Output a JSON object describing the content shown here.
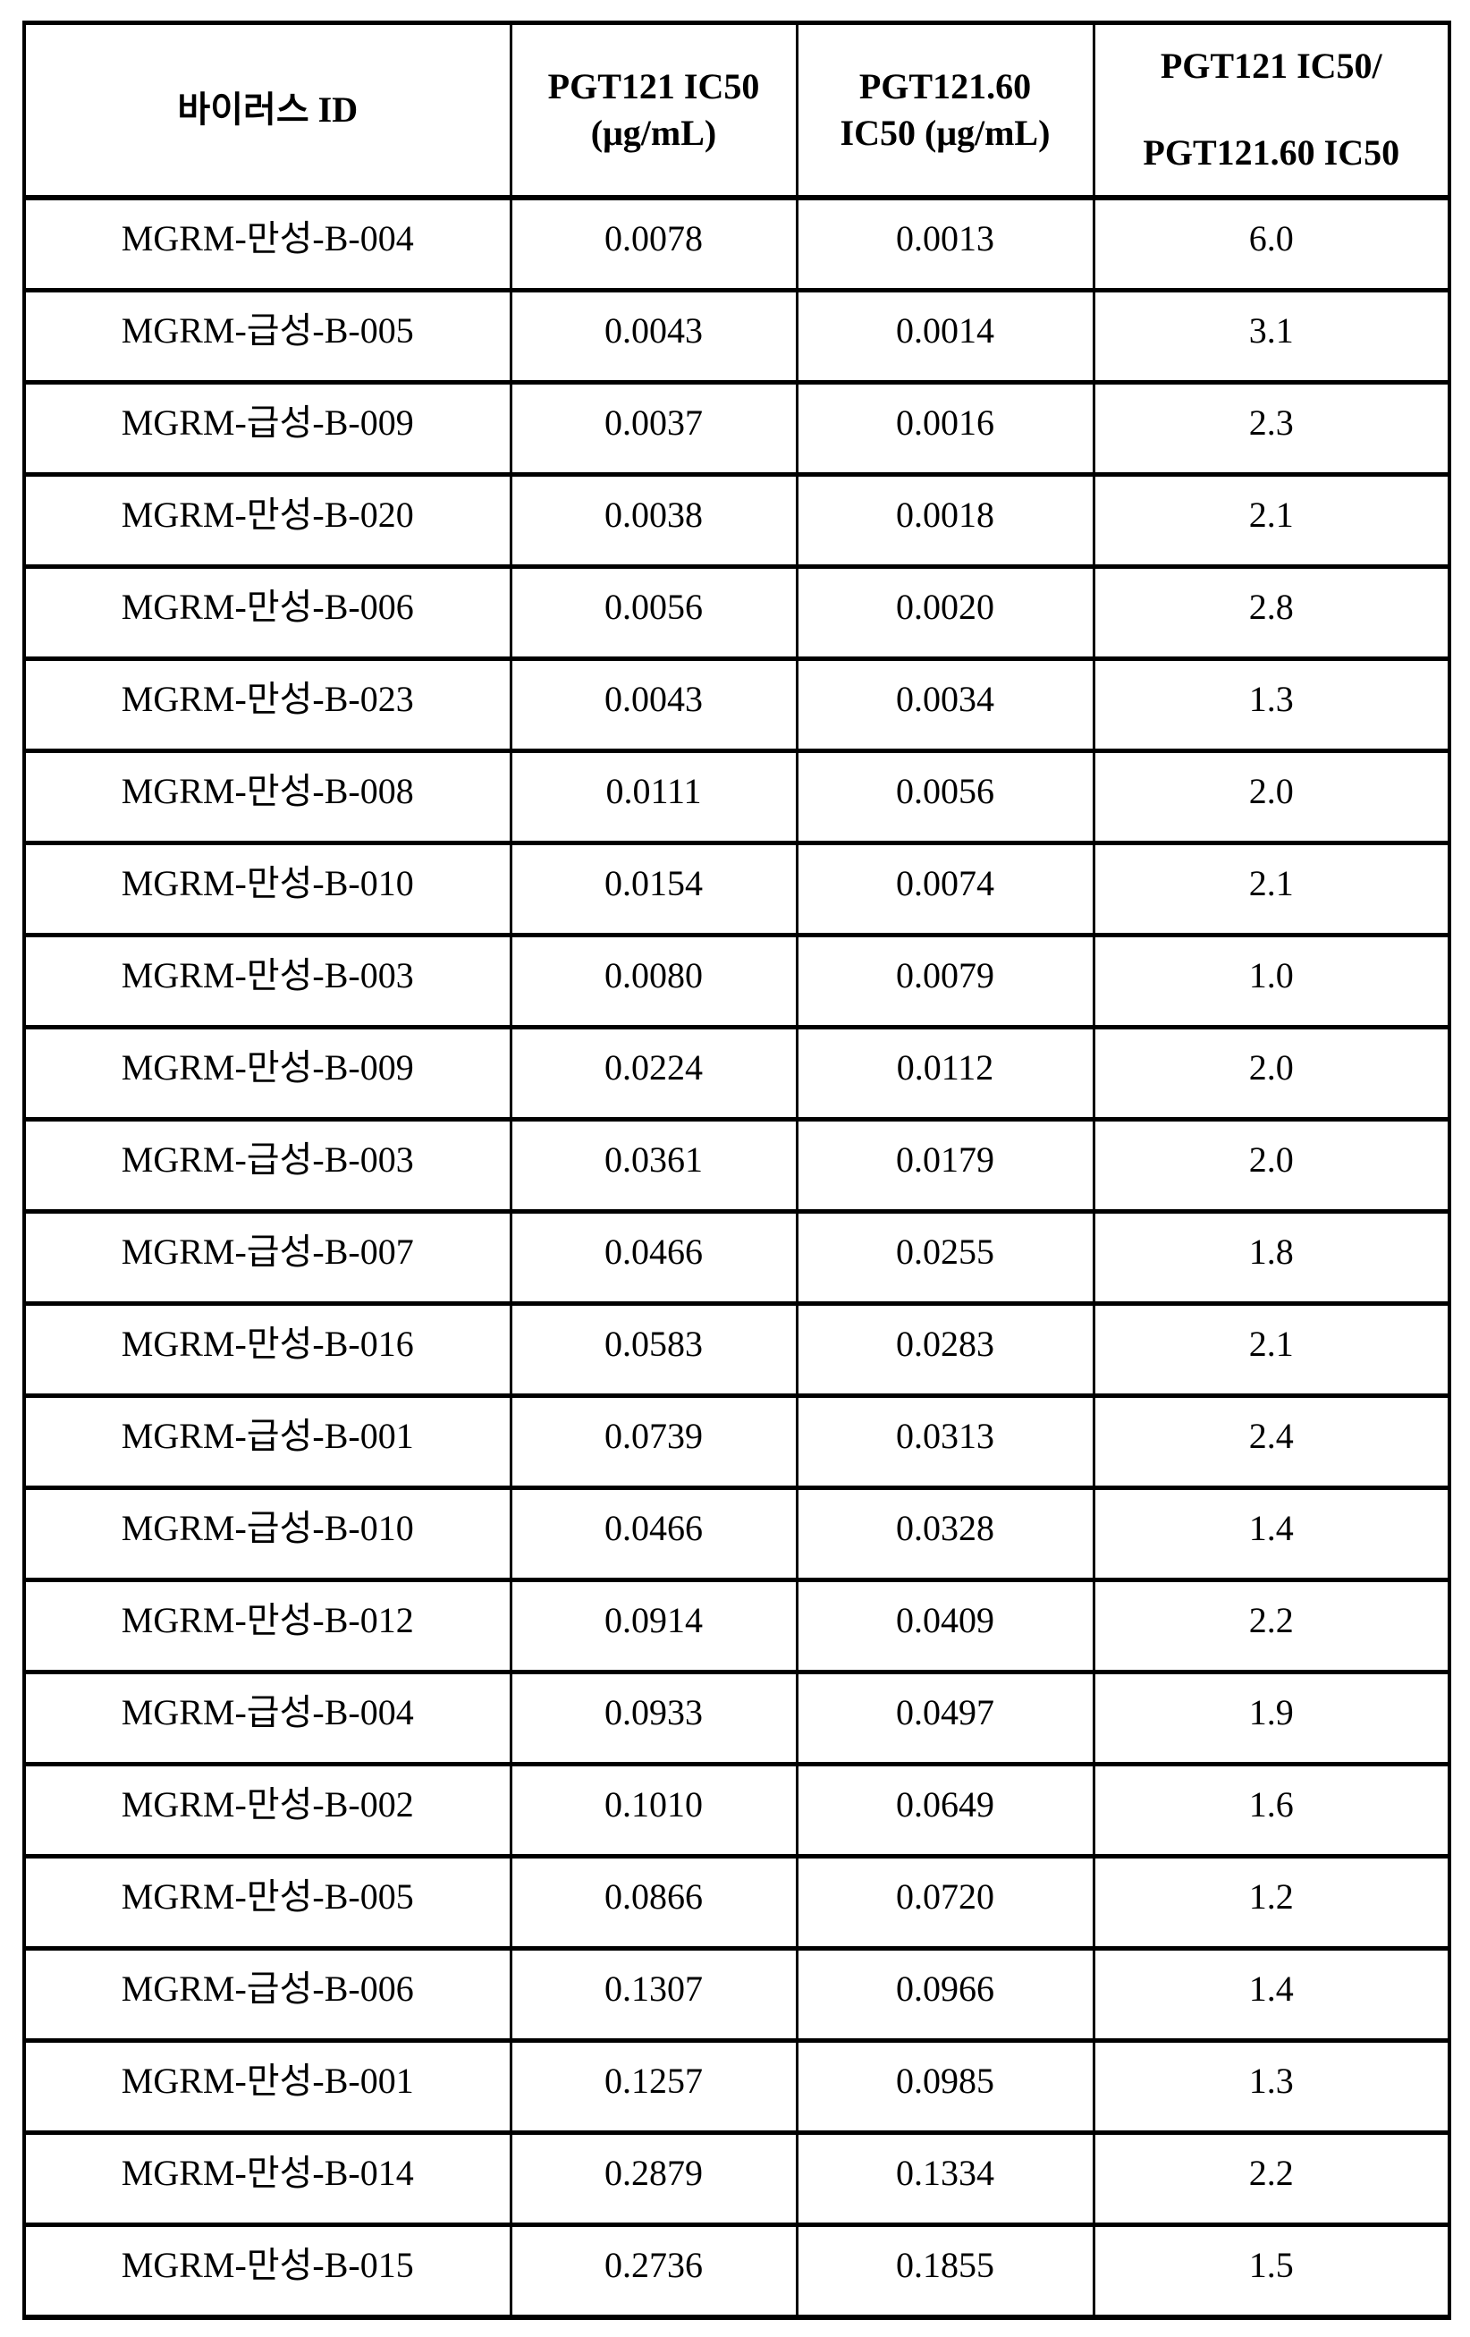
{
  "table": {
    "header": {
      "virus_id": "바이러스 ID",
      "pgt121_line1": "PGT121 IC50",
      "pgt121_line2": "(μg/mL)",
      "pgt121_60_line1": "PGT121.60",
      "pgt121_60_line2": "IC50 (μg/mL)",
      "ratio_line1": "PGT121 IC50/",
      "ratio_line2": "PGT121.60 IC50"
    },
    "rows": [
      {
        "id": "MGRM-만성-B-004",
        "pgt121_ic50": "0.0078",
        "pgt121_60_ic50": "0.0013",
        "ratio": "6.0"
      },
      {
        "id": "MGRM-급성-B-005",
        "pgt121_ic50": "0.0043",
        "pgt121_60_ic50": "0.0014",
        "ratio": "3.1"
      },
      {
        "id": "MGRM-급성-B-009",
        "pgt121_ic50": "0.0037",
        "pgt121_60_ic50": "0.0016",
        "ratio": "2.3"
      },
      {
        "id": "MGRM-만성-B-020",
        "pgt121_ic50": "0.0038",
        "pgt121_60_ic50": "0.0018",
        "ratio": "2.1"
      },
      {
        "id": "MGRM-만성-B-006",
        "pgt121_ic50": "0.0056",
        "pgt121_60_ic50": "0.0020",
        "ratio": "2.8"
      },
      {
        "id": "MGRM-만성-B-023",
        "pgt121_ic50": "0.0043",
        "pgt121_60_ic50": "0.0034",
        "ratio": "1.3"
      },
      {
        "id": "MGRM-만성-B-008",
        "pgt121_ic50": "0.0111",
        "pgt121_60_ic50": "0.0056",
        "ratio": "2.0"
      },
      {
        "id": "MGRM-만성-B-010",
        "pgt121_ic50": "0.0154",
        "pgt121_60_ic50": "0.0074",
        "ratio": "2.1"
      },
      {
        "id": "MGRM-만성-B-003",
        "pgt121_ic50": "0.0080",
        "pgt121_60_ic50": "0.0079",
        "ratio": "1.0"
      },
      {
        "id": "MGRM-만성-B-009",
        "pgt121_ic50": "0.0224",
        "pgt121_60_ic50": "0.0112",
        "ratio": "2.0"
      },
      {
        "id": "MGRM-급성-B-003",
        "pgt121_ic50": "0.0361",
        "pgt121_60_ic50": "0.0179",
        "ratio": "2.0"
      },
      {
        "id": "MGRM-급성-B-007",
        "pgt121_ic50": "0.0466",
        "pgt121_60_ic50": "0.0255",
        "ratio": "1.8"
      },
      {
        "id": "MGRM-만성-B-016",
        "pgt121_ic50": "0.0583",
        "pgt121_60_ic50": "0.0283",
        "ratio": "2.1"
      },
      {
        "id": "MGRM-급성-B-001",
        "pgt121_ic50": "0.0739",
        "pgt121_60_ic50": "0.0313",
        "ratio": "2.4"
      },
      {
        "id": "MGRM-급성-B-010",
        "pgt121_ic50": "0.0466",
        "pgt121_60_ic50": "0.0328",
        "ratio": "1.4"
      },
      {
        "id": "MGRM-만성-B-012",
        "pgt121_ic50": "0.0914",
        "pgt121_60_ic50": "0.0409",
        "ratio": "2.2"
      },
      {
        "id": "MGRM-급성-B-004",
        "pgt121_ic50": "0.0933",
        "pgt121_60_ic50": "0.0497",
        "ratio": "1.9"
      },
      {
        "id": "MGRM-만성-B-002",
        "pgt121_ic50": "0.1010",
        "pgt121_60_ic50": "0.0649",
        "ratio": "1.6"
      },
      {
        "id": "MGRM-만성-B-005",
        "pgt121_ic50": "0.0866",
        "pgt121_60_ic50": "0.0720",
        "ratio": "1.2"
      },
      {
        "id": "MGRM-급성-B-006",
        "pgt121_ic50": "0.1307",
        "pgt121_60_ic50": "0.0966",
        "ratio": "1.4"
      },
      {
        "id": "MGRM-만성-B-001",
        "pgt121_ic50": "0.1257",
        "pgt121_60_ic50": "0.0985",
        "ratio": "1.3"
      },
      {
        "id": "MGRM-만성-B-014",
        "pgt121_ic50": "0.2879",
        "pgt121_60_ic50": "0.1334",
        "ratio": "2.2"
      },
      {
        "id": "MGRM-만성-B-015",
        "pgt121_ic50": "0.2736",
        "pgt121_60_ic50": "0.1855",
        "ratio": "1.5"
      }
    ]
  }
}
